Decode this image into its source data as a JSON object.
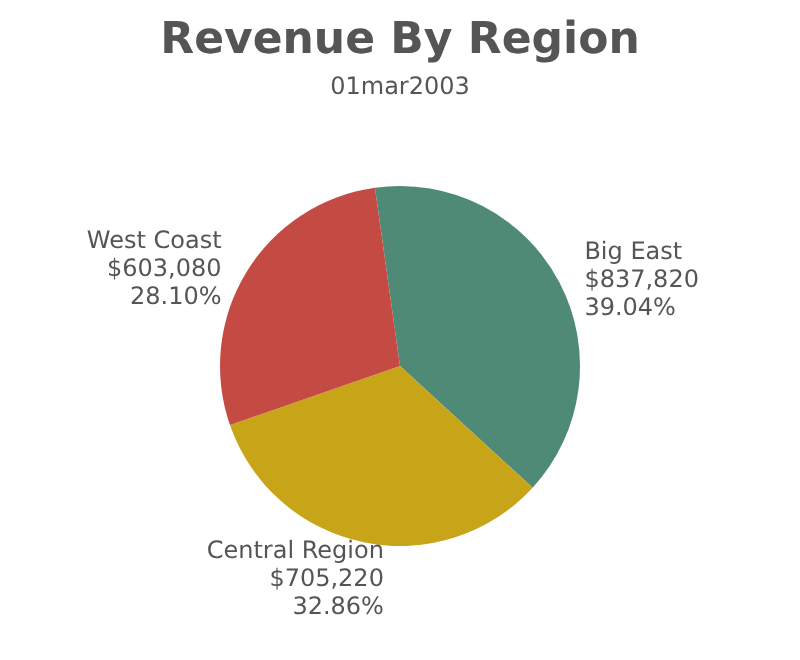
{
  "chart_data": {
    "type": "pie",
    "title": "Revenue By Region",
    "subtitle": "01mar2003",
    "categories": [
      "Big East",
      "Central Region",
      "West Coast"
    ],
    "values": [
      837820,
      705220,
      603080
    ],
    "value_labels": [
      "$837,820\n39.04%",
      "$705,220\n32.86%",
      "$603,080\n28.10%"
    ],
    "colors": [
      "#4e8a76",
      "#c8a418",
      "#c44a44"
    ],
    "legend": false
  }
}
